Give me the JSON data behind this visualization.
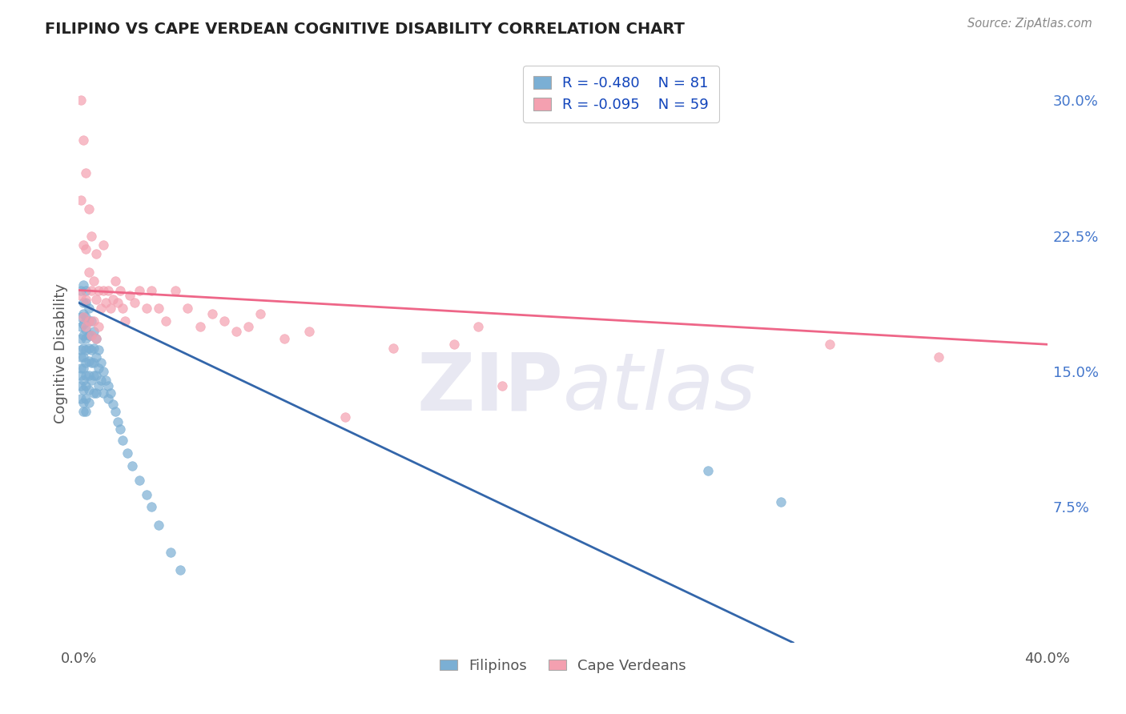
{
  "title": "FILIPINO VS CAPE VERDEAN COGNITIVE DISABILITY CORRELATION CHART",
  "source": "Source: ZipAtlas.com",
  "ylabel": "Cognitive Disability",
  "x_min": 0.0,
  "x_max": 0.4,
  "y_min": 0.0,
  "y_max": 0.32,
  "right_yticks": [
    0.075,
    0.15,
    0.225,
    0.3
  ],
  "right_yticklabels": [
    "7.5%",
    "15.0%",
    "22.5%",
    "30.0%"
  ],
  "filipino_color": "#7BAFD4",
  "capeverdean_color": "#F4A0B0",
  "filipino_line_color": "#3366AA",
  "capeverdean_line_color": "#EE6688",
  "legend_r_filipino": "-0.480",
  "legend_n_filipino": "81",
  "legend_r_capeverdean": "-0.095",
  "legend_n_capeverdean": "59",
  "legend_label_filipino": "Filipinos",
  "legend_label_capeverdean": "Cape Verdeans",
  "background_color": "#FFFFFF",
  "grid_color": "#DDDDDD",
  "watermark_color": "#E8E8F2",
  "filipino_x": [
    0.001,
    0.001,
    0.001,
    0.001,
    0.001,
    0.001,
    0.001,
    0.001,
    0.001,
    0.001,
    0.002,
    0.002,
    0.002,
    0.002,
    0.002,
    0.002,
    0.002,
    0.002,
    0.002,
    0.002,
    0.002,
    0.002,
    0.003,
    0.003,
    0.003,
    0.003,
    0.003,
    0.003,
    0.003,
    0.003,
    0.003,
    0.003,
    0.003,
    0.004,
    0.004,
    0.004,
    0.004,
    0.004,
    0.004,
    0.004,
    0.004,
    0.005,
    0.005,
    0.005,
    0.005,
    0.005,
    0.006,
    0.006,
    0.006,
    0.006,
    0.006,
    0.007,
    0.007,
    0.007,
    0.007,
    0.008,
    0.008,
    0.008,
    0.009,
    0.009,
    0.01,
    0.01,
    0.011,
    0.012,
    0.012,
    0.013,
    0.014,
    0.015,
    0.016,
    0.017,
    0.018,
    0.02,
    0.022,
    0.025,
    0.028,
    0.03,
    0.033,
    0.038,
    0.042,
    0.26,
    0.29
  ],
  "filipino_y": [
    0.195,
    0.18,
    0.175,
    0.168,
    0.162,
    0.158,
    0.152,
    0.148,
    0.142,
    0.135,
    0.198,
    0.188,
    0.182,
    0.176,
    0.17,
    0.163,
    0.158,
    0.152,
    0.145,
    0.14,
    0.133,
    0.128,
    0.195,
    0.188,
    0.18,
    0.173,
    0.168,
    0.162,
    0.155,
    0.148,
    0.142,
    0.135,
    0.128,
    0.185,
    0.178,
    0.17,
    0.163,
    0.156,
    0.148,
    0.14,
    0.133,
    0.178,
    0.17,
    0.162,
    0.155,
    0.145,
    0.172,
    0.163,
    0.155,
    0.148,
    0.138,
    0.168,
    0.158,
    0.148,
    0.138,
    0.162,
    0.152,
    0.142,
    0.155,
    0.145,
    0.15,
    0.138,
    0.145,
    0.142,
    0.135,
    0.138,
    0.132,
    0.128,
    0.122,
    0.118,
    0.112,
    0.105,
    0.098,
    0.09,
    0.082,
    0.075,
    0.065,
    0.05,
    0.04,
    0.095,
    0.078
  ],
  "capeverdean_x": [
    0.001,
    0.001,
    0.001,
    0.002,
    0.002,
    0.002,
    0.003,
    0.003,
    0.003,
    0.003,
    0.004,
    0.004,
    0.004,
    0.005,
    0.005,
    0.005,
    0.006,
    0.006,
    0.007,
    0.007,
    0.007,
    0.008,
    0.008,
    0.009,
    0.01,
    0.01,
    0.011,
    0.012,
    0.013,
    0.014,
    0.015,
    0.016,
    0.017,
    0.018,
    0.019,
    0.021,
    0.023,
    0.025,
    0.028,
    0.03,
    0.033,
    0.036,
    0.04,
    0.045,
    0.05,
    0.055,
    0.06,
    0.065,
    0.07,
    0.075,
    0.085,
    0.095,
    0.11,
    0.13,
    0.155,
    0.165,
    0.175,
    0.31,
    0.355
  ],
  "capeverdean_y": [
    0.3,
    0.245,
    0.192,
    0.278,
    0.22,
    0.18,
    0.26,
    0.218,
    0.19,
    0.175,
    0.24,
    0.205,
    0.178,
    0.225,
    0.195,
    0.17,
    0.2,
    0.178,
    0.215,
    0.19,
    0.168,
    0.195,
    0.175,
    0.185,
    0.22,
    0.195,
    0.188,
    0.195,
    0.185,
    0.19,
    0.2,
    0.188,
    0.195,
    0.185,
    0.178,
    0.192,
    0.188,
    0.195,
    0.185,
    0.195,
    0.185,
    0.178,
    0.195,
    0.185,
    0.175,
    0.182,
    0.178,
    0.172,
    0.175,
    0.182,
    0.168,
    0.172,
    0.125,
    0.163,
    0.165,
    0.175,
    0.142,
    0.165,
    0.158
  ],
  "fil_line_x0": 0.0,
  "fil_line_x1": 0.295,
  "fil_line_y0": 0.188,
  "fil_line_y1": 0.0,
  "cape_line_x0": 0.0,
  "cape_line_x1": 0.4,
  "cape_line_y0": 0.195,
  "cape_line_y1": 0.165
}
